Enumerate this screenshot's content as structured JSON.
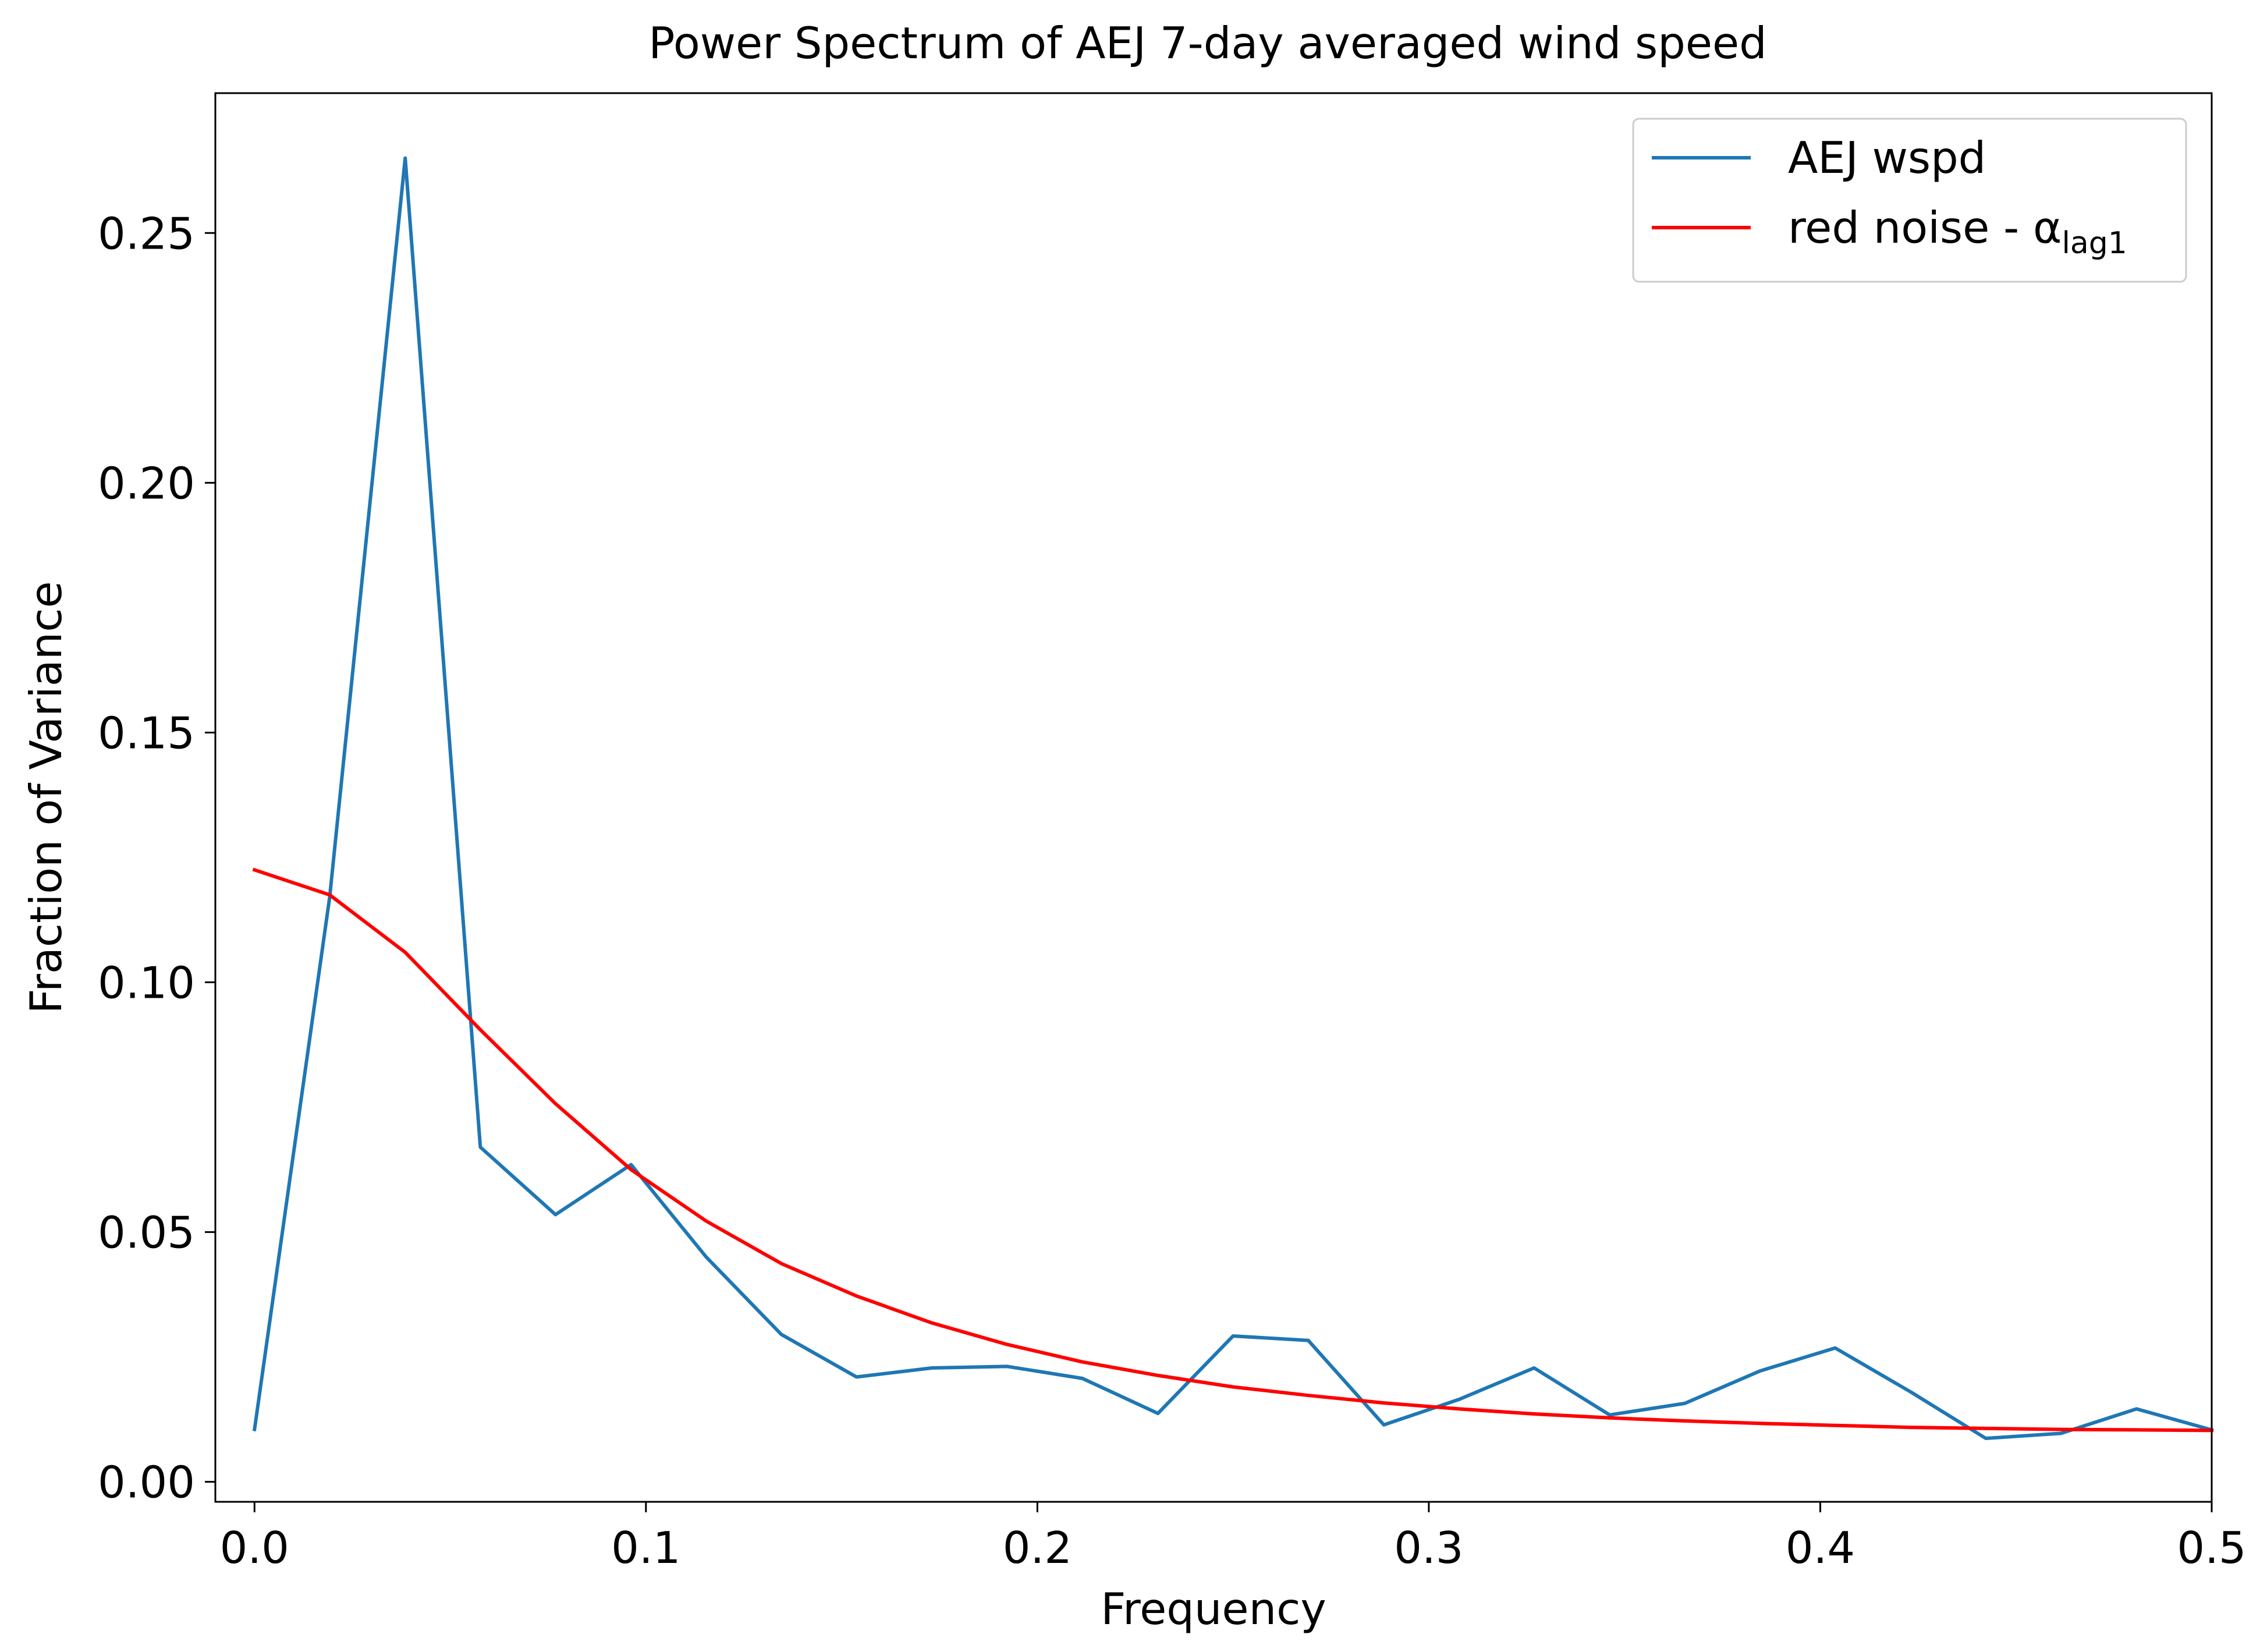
{
  "chart_data": {
    "type": "line",
    "title": "Power Spectrum of AEJ 7-day averaged wind speed",
    "xlabel": "Frequency",
    "ylabel": "Fraction of Variance",
    "xlim": [
      -0.01,
      0.5
    ],
    "ylim": [
      -0.004,
      0.278
    ],
    "xticks": [
      0.0,
      0.1,
      0.2,
      0.3,
      0.4,
      0.5
    ],
    "xtick_labels": [
      "0.0",
      "0.1",
      "0.2",
      "0.3",
      "0.4",
      "0.5"
    ],
    "yticks": [
      0.0,
      0.05,
      0.1,
      0.15,
      0.2,
      0.25
    ],
    "ytick_labels": [
      "0.00",
      "0.05",
      "0.10",
      "0.15",
      "0.20",
      "0.25"
    ],
    "grid": false,
    "legend_position": "top-right",
    "x": [
      0.0,
      0.0192,
      0.0385,
      0.0577,
      0.0769,
      0.0962,
      0.1154,
      0.1346,
      0.1538,
      0.1731,
      0.1923,
      0.2115,
      0.2308,
      0.25,
      0.2692,
      0.2885,
      0.3077,
      0.3269,
      0.3462,
      0.3654,
      0.3846,
      0.4038,
      0.4231,
      0.4423,
      0.4615,
      0.4808,
      0.5
    ],
    "series": [
      {
        "name": "AEJ wspd",
        "name_sub": "",
        "color": "#1f77b4",
        "values": [
          0.0105,
          0.117,
          0.265,
          0.067,
          0.0535,
          0.0635,
          0.045,
          0.0295,
          0.021,
          0.0228,
          0.0231,
          0.0207,
          0.0137,
          0.0292,
          0.0283,
          0.0114,
          0.0165,
          0.0228,
          0.0134,
          0.0157,
          0.0222,
          0.0268,
          0.018,
          0.0087,
          0.0097,
          0.0146,
          0.0104
        ]
      },
      {
        "name": "red noise - α",
        "name_sub": "lag1",
        "color": "#ff0000",
        "values": [
          0.1225,
          0.1175,
          0.106,
          0.0905,
          0.0757,
          0.0625,
          0.0522,
          0.0437,
          0.0372,
          0.0318,
          0.0275,
          0.024,
          0.0213,
          0.019,
          0.0173,
          0.0158,
          0.0146,
          0.0136,
          0.0128,
          0.0122,
          0.0117,
          0.0113,
          0.0109,
          0.0107,
          0.0105,
          0.0104,
          0.0103
        ]
      }
    ]
  }
}
